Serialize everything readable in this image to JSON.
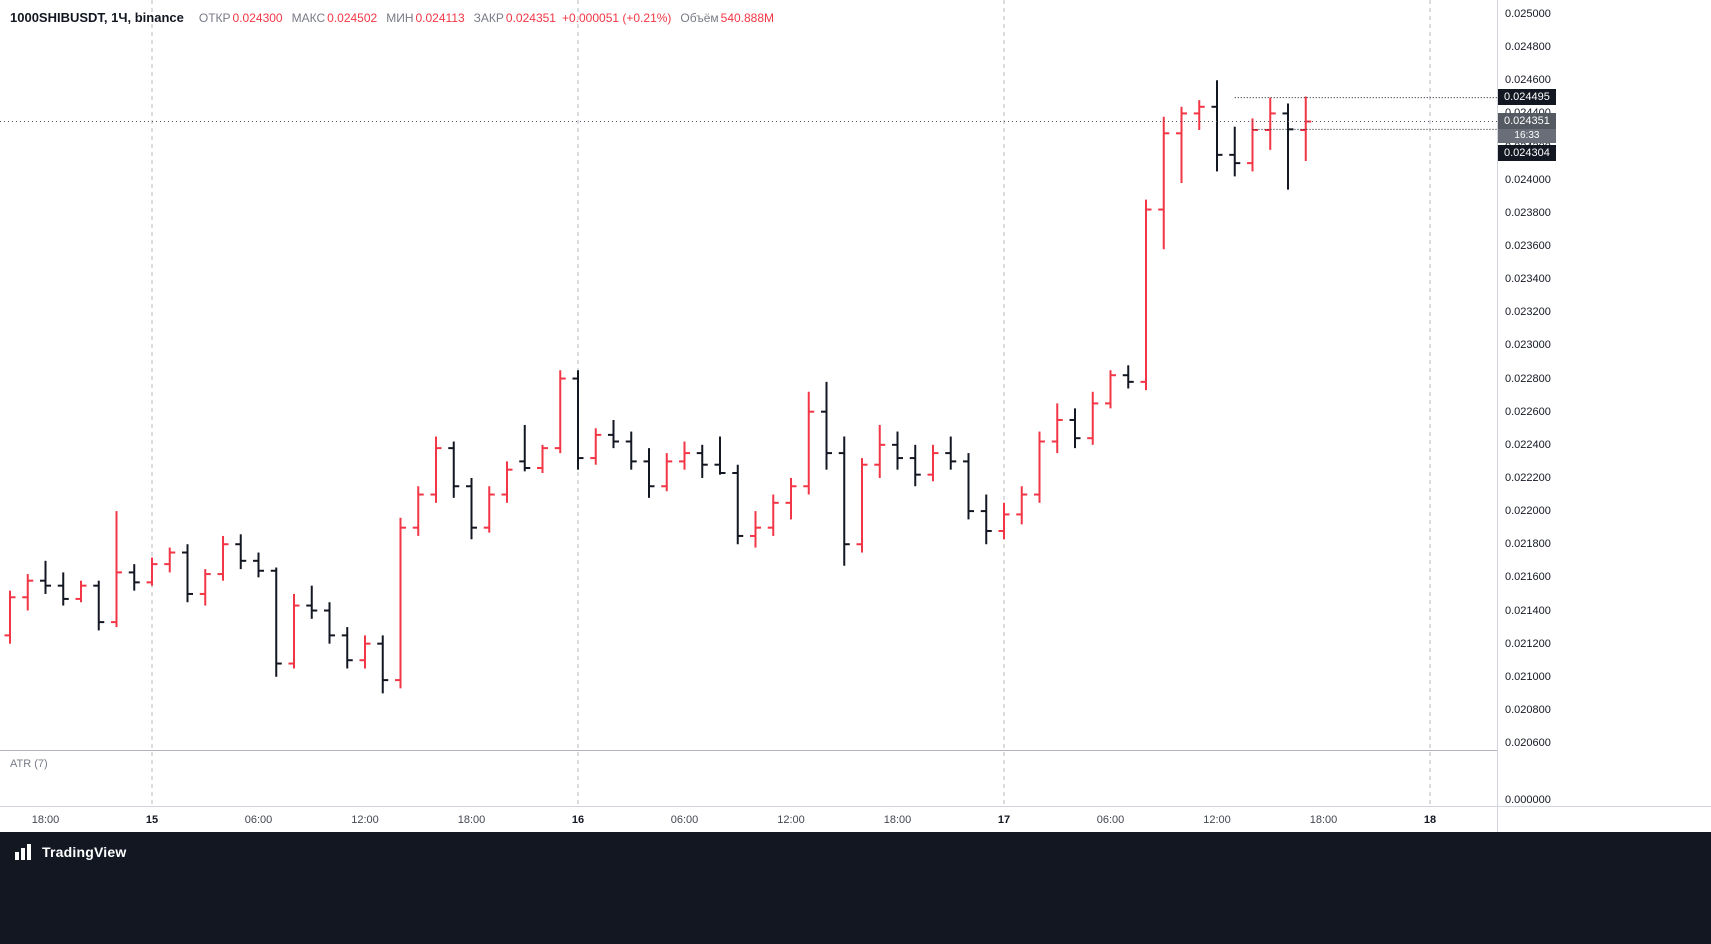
{
  "header": {
    "title": "1000SHIBUSDT, 1Ч, binance",
    "legend": {
      "open_label": "ОТКР",
      "open": "0.024300",
      "high_label": "МАКС",
      "high": "0.024502",
      "low_label": "МИН",
      "low": "0.024113",
      "close_label": "ЗАКР",
      "close": "0.024351",
      "change": "+0.000051 (+0.21%)",
      "volume_label": "Объём",
      "volume": "540.888M"
    }
  },
  "colors": {
    "up": "#f23645",
    "down": "#131722",
    "grid_dash": "#b7bac1",
    "price_line": "#50535e",
    "level_line": "#131722",
    "badge_dark_bg": "#131722",
    "badge_current_bg": "#555962",
    "badge_countdown_bg": "#6a6e79"
  },
  "price_axis": {
    "labels": [
      "0.025000",
      "0.024800",
      "0.024600",
      "0.024400",
      "0.024200",
      "0.024000",
      "0.023800",
      "0.023600",
      "0.023400",
      "0.023200",
      "0.023000",
      "0.022800",
      "0.022600",
      "0.022400",
      "0.022200",
      "0.022000",
      "0.021800",
      "0.021600",
      "0.021400",
      "0.021200",
      "0.021000",
      "0.020800",
      "0.020600"
    ],
    "badges": [
      {
        "text": "0.024495",
        "price": 0.024495,
        "kind": "level"
      },
      {
        "text": "0.024351",
        "price": 0.024351,
        "kind": "current",
        "countdown": "16:33"
      },
      {
        "text": "0.024304",
        "price": 0.024304,
        "kind": "level"
      }
    ]
  },
  "time_axis": {
    "labels": [
      {
        "text": "18:00",
        "bar": 2,
        "major": false
      },
      {
        "text": "15",
        "bar": 8,
        "major": true
      },
      {
        "text": "06:00",
        "bar": 14,
        "major": false
      },
      {
        "text": "12:00",
        "bar": 20,
        "major": false
      },
      {
        "text": "18:00",
        "bar": 26,
        "major": false
      },
      {
        "text": "16",
        "bar": 32,
        "major": true
      },
      {
        "text": "06:00",
        "bar": 38,
        "major": false
      },
      {
        "text": "12:00",
        "bar": 44,
        "major": false
      },
      {
        "text": "18:00",
        "bar": 50,
        "major": false
      },
      {
        "text": "17",
        "bar": 56,
        "major": true
      },
      {
        "text": "06:00",
        "bar": 62,
        "major": false
      },
      {
        "text": "12:00",
        "bar": 68,
        "major": false
      },
      {
        "text": "18:00",
        "bar": 74,
        "major": false
      },
      {
        "text": "18",
        "bar": 80,
        "major": true
      }
    ]
  },
  "indicator": {
    "label": "ATR (7)",
    "axis_label": "0.000000"
  },
  "footer": {
    "brand": "TradingView"
  },
  "chart_data": {
    "type": "ohlc_bar",
    "title": "1000SHIBUSDT, 1Ч, binance",
    "symbol": "1000SHIBUSDT",
    "interval": "1Ч",
    "exchange": "binance",
    "last_bar": {
      "open": 0.0243,
      "high": 0.024502,
      "low": 0.024113,
      "close": 0.024351,
      "change": "+0.000051 (+0.21%)",
      "volume": "540.888M"
    },
    "y_axis": {
      "min": 0.0206,
      "max": 0.025,
      "tick": 0.0002,
      "extra_pane_label": "0.000000"
    },
    "price_line": 0.024351,
    "levels": [
      {
        "price": 0.024495,
        "from_bar": 69
      },
      {
        "price": 0.024304,
        "from_bar": 70
      }
    ],
    "day_break_bars": [
      8,
      32,
      56,
      80
    ],
    "bars_format": [
      "open",
      "high",
      "low",
      "close"
    ],
    "bars": [
      [
        0.02125,
        0.02152,
        0.0212,
        0.02148
      ],
      [
        0.02148,
        0.02162,
        0.0214,
        0.02158
      ],
      [
        0.02158,
        0.0217,
        0.0215,
        0.02155
      ],
      [
        0.02155,
        0.02163,
        0.02143,
        0.02147
      ],
      [
        0.02147,
        0.02158,
        0.02145,
        0.02155
      ],
      [
        0.02155,
        0.02158,
        0.02128,
        0.02133
      ],
      [
        0.02133,
        0.022,
        0.0213,
        0.02163
      ],
      [
        0.02163,
        0.02168,
        0.02152,
        0.02157
      ],
      [
        0.02157,
        0.02172,
        0.02155,
        0.02168
      ],
      [
        0.02168,
        0.02178,
        0.02163,
        0.02175
      ],
      [
        0.02175,
        0.0218,
        0.02145,
        0.0215
      ],
      [
        0.0215,
        0.02165,
        0.02143,
        0.02162
      ],
      [
        0.02162,
        0.02185,
        0.02158,
        0.0218
      ],
      [
        0.0218,
        0.02186,
        0.02165,
        0.0217
      ],
      [
        0.0217,
        0.02175,
        0.0216,
        0.02164
      ],
      [
        0.02164,
        0.02166,
        0.021,
        0.02108
      ],
      [
        0.02108,
        0.0215,
        0.02105,
        0.02143
      ],
      [
        0.02143,
        0.02155,
        0.02135,
        0.0214
      ],
      [
        0.0214,
        0.02145,
        0.0212,
        0.02125
      ],
      [
        0.02125,
        0.0213,
        0.02105,
        0.0211
      ],
      [
        0.0211,
        0.02125,
        0.02105,
        0.0212
      ],
      [
        0.0212,
        0.02125,
        0.0209,
        0.02098
      ],
      [
        0.02098,
        0.02196,
        0.02093,
        0.0219
      ],
      [
        0.0219,
        0.02215,
        0.02185,
        0.0221
      ],
      [
        0.0221,
        0.02245,
        0.02205,
        0.02238
      ],
      [
        0.02238,
        0.02242,
        0.02208,
        0.02215
      ],
      [
        0.02215,
        0.0222,
        0.02183,
        0.0219
      ],
      [
        0.0219,
        0.02215,
        0.02187,
        0.0221
      ],
      [
        0.0221,
        0.0223,
        0.02205,
        0.02225
      ],
      [
        0.0223,
        0.02252,
        0.02224,
        0.02226
      ],
      [
        0.02226,
        0.0224,
        0.02223,
        0.02238
      ],
      [
        0.02238,
        0.02285,
        0.02235,
        0.0228
      ],
      [
        0.0228,
        0.02285,
        0.02225,
        0.02232
      ],
      [
        0.02232,
        0.0225,
        0.02228,
        0.02246
      ],
      [
        0.02246,
        0.02255,
        0.02238,
        0.02242
      ],
      [
        0.02242,
        0.02248,
        0.02225,
        0.0223
      ],
      [
        0.0223,
        0.02238,
        0.02208,
        0.02215
      ],
      [
        0.02215,
        0.02235,
        0.02212,
        0.0223
      ],
      [
        0.0223,
        0.02242,
        0.02225,
        0.02235
      ],
      [
        0.02235,
        0.0224,
        0.0222,
        0.02228
      ],
      [
        0.02228,
        0.02245,
        0.02222,
        0.02223
      ],
      [
        0.02223,
        0.02228,
        0.0218,
        0.02185
      ],
      [
        0.02185,
        0.022,
        0.02178,
        0.0219
      ],
      [
        0.0219,
        0.0221,
        0.02185,
        0.02205
      ],
      [
        0.02205,
        0.0222,
        0.02195,
        0.02215
      ],
      [
        0.02215,
        0.02272,
        0.0221,
        0.0226
      ],
      [
        0.0226,
        0.02278,
        0.02225,
        0.02235
      ],
      [
        0.02235,
        0.02245,
        0.02167,
        0.0218
      ],
      [
        0.0218,
        0.02232,
        0.02175,
        0.02228
      ],
      [
        0.02228,
        0.02252,
        0.0222,
        0.0224
      ],
      [
        0.0224,
        0.02248,
        0.02225,
        0.02232
      ],
      [
        0.02232,
        0.0224,
        0.02215,
        0.02222
      ],
      [
        0.02222,
        0.0224,
        0.02218,
        0.02235
      ],
      [
        0.02235,
        0.02245,
        0.02225,
        0.0223
      ],
      [
        0.0223,
        0.02235,
        0.02195,
        0.022
      ],
      [
        0.022,
        0.0221,
        0.0218,
        0.02188
      ],
      [
        0.02188,
        0.02205,
        0.02183,
        0.02198
      ],
      [
        0.02198,
        0.02215,
        0.02192,
        0.0221
      ],
      [
        0.0221,
        0.02248,
        0.02205,
        0.02242
      ],
      [
        0.02242,
        0.02265,
        0.02235,
        0.02255
      ],
      [
        0.02255,
        0.02262,
        0.02238,
        0.02244
      ],
      [
        0.02244,
        0.02272,
        0.0224,
        0.02265
      ],
      [
        0.02265,
        0.02285,
        0.02262,
        0.02282
      ],
      [
        0.02282,
        0.02288,
        0.02274,
        0.02278
      ],
      [
        0.02278,
        0.02388,
        0.02273,
        0.02382
      ],
      [
        0.02382,
        0.02438,
        0.02358,
        0.02428
      ],
      [
        0.02428,
        0.02444,
        0.02398,
        0.0244
      ],
      [
        0.0244,
        0.02448,
        0.0243,
        0.02444
      ],
      [
        0.02444,
        0.0246,
        0.02405,
        0.02415
      ],
      [
        0.02415,
        0.02432,
        0.02402,
        0.0241
      ],
      [
        0.0241,
        0.02437,
        0.02405,
        0.0243
      ],
      [
        0.0243,
        0.024495,
        0.02418,
        0.0244
      ],
      [
        0.0244,
        0.02446,
        0.02394,
        0.024304
      ],
      [
        0.0243,
        0.024502,
        0.024113,
        0.024351
      ]
    ],
    "x_axis_visible_labels": [
      "18:00",
      "15",
      "06:00",
      "12:00",
      "18:00",
      "16",
      "06:00",
      "12:00",
      "18:00",
      "17",
      "06:00",
      "12:00",
      "18:00",
      "18"
    ],
    "grid": "vertical-day-breaks-dashed",
    "legend_position": "top-left",
    "indicator_pane": {
      "label": "ATR (7)",
      "visible_values": [
        "0.000000"
      ]
    }
  }
}
